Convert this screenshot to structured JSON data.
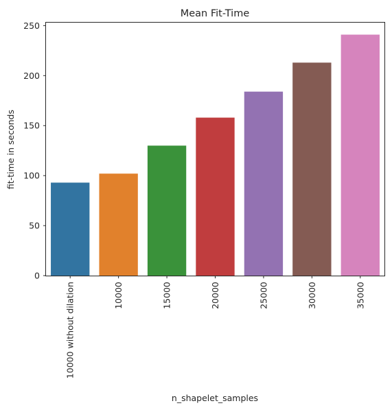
{
  "chart_data": {
    "type": "bar",
    "title": "Mean Fit-Time",
    "xlabel": "n_shapelet_samples",
    "ylabel": "fit-time in seconds",
    "categories": [
      "10000 without dilation",
      "10000",
      "15000",
      "20000",
      "25000",
      "30000",
      "35000"
    ],
    "values": [
      93,
      102,
      130,
      158,
      184,
      213,
      241
    ],
    "colors": [
      "#3274a1",
      "#e1812c",
      "#3a923a",
      "#c03d3e",
      "#9372b2",
      "#845b53",
      "#d684bd"
    ],
    "ylim": [
      0,
      253
    ],
    "yticks": [
      0,
      50,
      100,
      150,
      200,
      250
    ],
    "grid": false,
    "legend": "none"
  }
}
